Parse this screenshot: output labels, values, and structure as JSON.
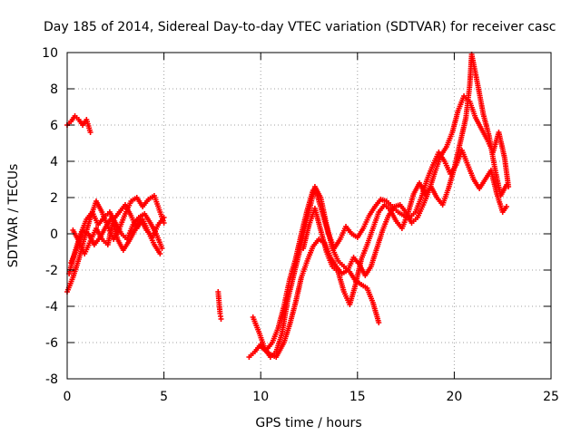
{
  "chart_data": {
    "type": "scatter",
    "title": "Day 185 of 2014, Sidereal Day-to-day VTEC variation (SDTVAR) for receiver casc",
    "xlabel": "GPS time / hours",
    "ylabel": "SDTVAR / TECUs",
    "xlim": [
      0,
      25
    ],
    "ylim": [
      -8,
      10
    ],
    "xticks": [
      0,
      5,
      10,
      15,
      20,
      25
    ],
    "yticks": [
      -8,
      -6,
      -4,
      -2,
      0,
      2,
      4,
      6,
      8,
      10
    ],
    "grid": true,
    "marker": "plus",
    "color": "#ff0000",
    "series": [
      {
        "points": [
          [
            0.0,
            6.0
          ],
          [
            0.2,
            6.2
          ],
          [
            0.4,
            6.5
          ],
          [
            0.6,
            6.3
          ],
          [
            0.8,
            6.0
          ],
          [
            1.0,
            6.3
          ],
          [
            1.2,
            5.6
          ]
        ]
      },
      {
        "points": [
          [
            0.0,
            -3.2
          ],
          [
            0.3,
            -2.4
          ],
          [
            0.6,
            -1.4
          ],
          [
            0.9,
            -0.2
          ],
          [
            1.2,
            0.9
          ],
          [
            1.5,
            1.8
          ],
          [
            1.8,
            1.2
          ],
          [
            2.1,
            0.4
          ],
          [
            2.4,
            -0.3
          ],
          [
            2.7,
            0.3
          ],
          [
            3.0,
            1.1
          ],
          [
            3.3,
            1.8
          ],
          [
            3.6,
            2.0
          ],
          [
            3.9,
            1.5
          ],
          [
            4.2,
            1.9
          ],
          [
            4.5,
            2.1
          ],
          [
            4.8,
            1.2
          ],
          [
            5.0,
            0.6
          ]
        ]
      },
      {
        "points": [
          [
            0.1,
            -2.2
          ],
          [
            0.4,
            -1.0
          ],
          [
            0.7,
            0.0
          ],
          [
            1.0,
            0.8
          ],
          [
            1.3,
            1.2
          ],
          [
            1.6,
            0.5
          ],
          [
            1.9,
            0.9
          ],
          [
            2.2,
            1.2
          ],
          [
            2.5,
            0.6
          ],
          [
            2.8,
            0.0
          ],
          [
            3.1,
            -0.3
          ],
          [
            3.4,
            0.5
          ],
          [
            3.7,
            0.9
          ],
          [
            4.0,
            1.1
          ],
          [
            4.3,
            0.6
          ],
          [
            4.6,
            0.0
          ],
          [
            4.9,
            -0.8
          ]
        ]
      },
      {
        "points": [
          [
            0.2,
            -1.6
          ],
          [
            0.5,
            -0.8
          ],
          [
            0.8,
            0.2
          ],
          [
            1.1,
            0.0
          ],
          [
            1.4,
            -0.6
          ],
          [
            1.7,
            -0.2
          ],
          [
            2.0,
            0.4
          ],
          [
            2.3,
            0.9
          ],
          [
            2.6,
            -0.3
          ],
          [
            2.9,
            -0.9
          ],
          [
            3.2,
            -0.4
          ],
          [
            3.5,
            0.2
          ],
          [
            3.8,
            0.8
          ],
          [
            4.1,
            0.2
          ],
          [
            4.4,
            -0.2
          ],
          [
            4.7,
            0.5
          ],
          [
            5.0,
            0.9
          ]
        ]
      },
      {
        "points": [
          [
            0.3,
            0.2
          ],
          [
            0.6,
            -0.4
          ],
          [
            0.9,
            -1.1
          ],
          [
            1.2,
            -0.4
          ],
          [
            1.5,
            0.3
          ],
          [
            1.8,
            -0.3
          ],
          [
            2.1,
            -0.6
          ],
          [
            2.4,
            0.8
          ],
          [
            2.7,
            1.2
          ],
          [
            3.0,
            1.6
          ],
          [
            3.3,
            1.0
          ],
          [
            3.6,
            0.3
          ],
          [
            3.9,
            0.8
          ],
          [
            4.2,
            0.1
          ],
          [
            4.5,
            -0.6
          ],
          [
            4.8,
            -1.1
          ]
        ]
      },
      {
        "points": [
          [
            7.8,
            -3.2
          ],
          [
            7.85,
            -3.8
          ],
          [
            7.9,
            -4.4
          ],
          [
            7.95,
            -4.7
          ]
        ]
      },
      {
        "points": [
          [
            9.4,
            -6.8
          ],
          [
            9.7,
            -6.5
          ],
          [
            10.0,
            -6.1
          ],
          [
            10.3,
            -6.4
          ],
          [
            10.6,
            -6.0
          ],
          [
            10.9,
            -5.2
          ],
          [
            11.2,
            -4.0
          ],
          [
            11.5,
            -2.5
          ],
          [
            11.8,
            -1.4
          ],
          [
            12.1,
            0.0
          ],
          [
            12.4,
            1.3
          ],
          [
            12.7,
            2.4
          ],
          [
            12.9,
            2.2
          ],
          [
            13.2,
            1.1
          ],
          [
            13.5,
            0.0
          ],
          [
            13.8,
            -0.8
          ],
          [
            14.1,
            -0.3
          ],
          [
            14.4,
            0.4
          ],
          [
            14.7,
            0.0
          ],
          [
            15.0,
            -0.2
          ],
          [
            15.3,
            0.3
          ],
          [
            15.6,
            1.0
          ],
          [
            15.9,
            1.5
          ],
          [
            16.2,
            1.9
          ],
          [
            16.5,
            1.8
          ],
          [
            16.8,
            1.5
          ],
          [
            17.1,
            1.2
          ],
          [
            17.4,
            1.0
          ],
          [
            17.7,
            0.9
          ],
          [
            18.0,
            1.2
          ],
          [
            18.3,
            2.0
          ],
          [
            18.6,
            3.0
          ],
          [
            18.9,
            3.8
          ],
          [
            19.2,
            4.5
          ],
          [
            19.5,
            4.0
          ],
          [
            19.8,
            3.3
          ],
          [
            20.1,
            3.8
          ],
          [
            20.4,
            4.6
          ],
          [
            20.7,
            3.8
          ],
          [
            21.0,
            3.0
          ],
          [
            21.3,
            2.5
          ],
          [
            21.6,
            3.0
          ],
          [
            21.9,
            3.5
          ],
          [
            22.2,
            2.2
          ],
          [
            22.5,
            1.2
          ],
          [
            22.7,
            1.5
          ]
        ]
      },
      {
        "points": [
          [
            9.6,
            -4.6
          ],
          [
            9.9,
            -5.4
          ],
          [
            10.2,
            -6.3
          ],
          [
            10.5,
            -6.8
          ],
          [
            10.8,
            -6.5
          ],
          [
            11.1,
            -5.5
          ],
          [
            11.4,
            -3.6
          ],
          [
            11.7,
            -2.3
          ],
          [
            12.0,
            -1.0
          ],
          [
            12.3,
            0.4
          ],
          [
            12.6,
            1.7
          ],
          [
            12.8,
            2.6
          ],
          [
            13.1,
            2.0
          ],
          [
            13.4,
            0.5
          ],
          [
            13.7,
            -0.8
          ],
          [
            14.0,
            -1.5
          ],
          [
            14.3,
            -1.8
          ],
          [
            14.6,
            -2.1
          ],
          [
            14.9,
            -2.6
          ],
          [
            15.2,
            -2.8
          ],
          [
            15.5,
            -3.0
          ],
          [
            15.8,
            -3.8
          ],
          [
            16.1,
            -4.9
          ]
        ]
      },
      {
        "points": [
          [
            10.0,
            -6.2
          ],
          [
            10.4,
            -6.6
          ],
          [
            10.8,
            -6.8
          ],
          [
            11.2,
            -6.0
          ],
          [
            11.5,
            -5.0
          ],
          [
            11.8,
            -3.8
          ],
          [
            12.1,
            -2.4
          ],
          [
            12.4,
            -1.5
          ],
          [
            12.7,
            -0.7
          ],
          [
            13.0,
            -0.3
          ],
          [
            13.3,
            -0.5
          ],
          [
            13.6,
            -1.3
          ],
          [
            13.9,
            -1.8
          ],
          [
            14.2,
            -2.2
          ],
          [
            14.5,
            -2.0
          ],
          [
            14.8,
            -1.3
          ],
          [
            15.1,
            -1.7
          ],
          [
            15.4,
            -2.3
          ],
          [
            15.7,
            -1.8
          ],
          [
            16.0,
            -0.8
          ],
          [
            16.3,
            0.2
          ],
          [
            16.6,
            1.0
          ],
          [
            16.9,
            1.5
          ],
          [
            17.2,
            1.6
          ],
          [
            17.5,
            1.2
          ],
          [
            17.8,
            0.6
          ],
          [
            18.1,
            0.9
          ],
          [
            18.4,
            1.6
          ],
          [
            18.7,
            2.4
          ],
          [
            19.0,
            3.4
          ],
          [
            19.3,
            4.3
          ],
          [
            19.6,
            4.8
          ],
          [
            19.9,
            5.6
          ],
          [
            20.2,
            6.8
          ],
          [
            20.5,
            7.6
          ],
          [
            20.8,
            7.3
          ],
          [
            21.1,
            6.4
          ],
          [
            21.4,
            5.8
          ],
          [
            21.7,
            5.2
          ],
          [
            22.0,
            4.5
          ],
          [
            22.3,
            5.6
          ],
          [
            22.6,
            4.2
          ],
          [
            22.8,
            2.6
          ]
        ]
      },
      {
        "points": [
          [
            12.2,
            -0.8
          ],
          [
            12.5,
            0.5
          ],
          [
            12.8,
            1.4
          ],
          [
            13.1,
            0.2
          ],
          [
            13.4,
            -1.0
          ],
          [
            13.7,
            -1.8
          ],
          [
            14.0,
            -2.1
          ],
          [
            14.3,
            -3.2
          ],
          [
            14.6,
            -3.9
          ],
          [
            14.9,
            -2.8
          ],
          [
            15.2,
            -1.4
          ],
          [
            15.5,
            -0.6
          ],
          [
            15.8,
            0.3
          ],
          [
            16.1,
            1.2
          ],
          [
            16.4,
            1.6
          ],
          [
            16.7,
            1.3
          ],
          [
            17.0,
            0.7
          ],
          [
            17.3,
            0.3
          ],
          [
            17.6,
            1.1
          ],
          [
            17.9,
            2.2
          ],
          [
            18.2,
            2.8
          ],
          [
            18.5,
            2.2
          ],
          [
            18.8,
            2.6
          ],
          [
            19.1,
            2.0
          ],
          [
            19.4,
            1.6
          ],
          [
            19.7,
            2.5
          ],
          [
            20.0,
            3.6
          ],
          [
            20.3,
            5.0
          ],
          [
            20.6,
            6.4
          ],
          [
            20.8,
            8.2
          ],
          [
            20.9,
            9.9
          ],
          [
            21.2,
            8.3
          ],
          [
            21.5,
            6.6
          ],
          [
            21.8,
            5.4
          ],
          [
            22.1,
            3.6
          ],
          [
            22.4,
            2.1
          ],
          [
            22.7,
            2.7
          ]
        ]
      }
    ]
  }
}
